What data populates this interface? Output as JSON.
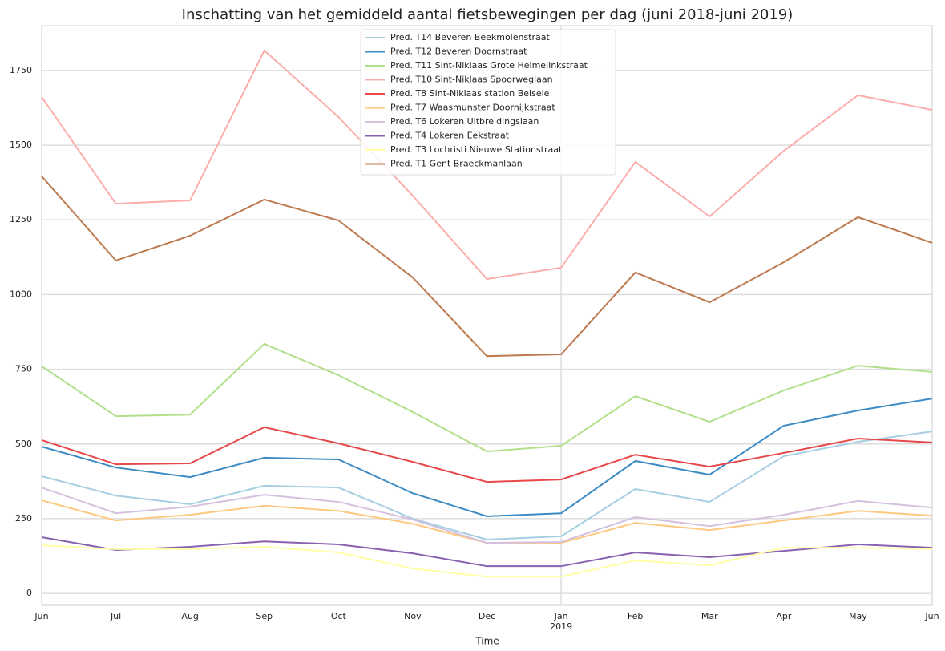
{
  "chart_data": {
    "type": "line",
    "title": "Inschatting van het gemiddeld aantal fietsbewegingen per dag (juni 2018-juni 2019)",
    "x_label": "Time",
    "categories": [
      "Jun",
      "Jul",
      "Aug",
      "Sep",
      "Oct",
      "Nov",
      "Dec",
      "Jan",
      "Feb",
      "Mar",
      "Apr",
      "May",
      "Jun"
    ],
    "year_label": "2019",
    "ylim": [
      -40,
      1900
    ],
    "yticks": [
      0,
      250,
      500,
      750,
      1000,
      1250,
      1500,
      1750
    ],
    "grid": true,
    "legend": "upper center",
    "series": [
      {
        "name": "Pred. T14 Beveren Beekmolenstraat",
        "color": "#a6cee3",
        "values": [
          392,
          327,
          298,
          360,
          354,
          250,
          180,
          191,
          349,
          306,
          459,
          507,
          542
        ]
      },
      {
        "name": "Pred. T12 Beveren Doornstraat",
        "color": "#3d8bc4",
        "values": [
          491,
          421,
          389,
          454,
          448,
          335,
          258,
          268,
          443,
          397,
          561,
          612,
          652
        ]
      },
      {
        "name": "Pred. T11 Sint-Niklaas Grote Heimelinkstraat",
        "color": "#b2df8a",
        "values": [
          760,
          593,
          598,
          835,
          730,
          607,
          475,
          494,
          660,
          574,
          679,
          762,
          741
        ]
      },
      {
        "name": "Pred. T10 Sint-Niklaas Spoorweglaan",
        "color": "#fbadac",
        "values": [
          1661,
          1304,
          1315,
          1817,
          1594,
          1331,
          1052,
          1090,
          1444,
          1261,
          1481,
          1667,
          1618
        ]
      },
      {
        "name": "Pred. T8 Sint-Niklaas station Belsele",
        "color": "#e8474a",
        "values": [
          513,
          432,
          435,
          556,
          502,
          440,
          373,
          381,
          464,
          424,
          470,
          518,
          505
        ]
      },
      {
        "name": "Pred. T7 Waasmunster Doornijkstraat",
        "color": "#fdc87f",
        "values": [
          311,
          244,
          263,
          293,
          276,
          233,
          169,
          169,
          236,
          212,
          244,
          276,
          260
        ]
      },
      {
        "name": "Pred. T6 Lokeren Uitbreidingslaan",
        "color": "#d4c1e0",
        "values": [
          354,
          268,
          290,
          330,
          306,
          247,
          169,
          172,
          255,
          225,
          263,
          309,
          287
        ]
      },
      {
        "name": "Pred. T4 Lokeren Eekstraat",
        "color": "#8862b0",
        "values": [
          188,
          145,
          156,
          174,
          164,
          134,
          91,
          91,
          137,
          121,
          142,
          164,
          153
        ]
      },
      {
        "name": "Pred. T3 Lochristi Nieuwe Stationstraat",
        "color": "#ffffa8",
        "values": [
          161,
          148,
          148,
          156,
          137,
          83,
          56,
          56,
          110,
          94,
          153,
          153,
          148
        ]
      },
      {
        "name": "Pred. T1 Gent Braeckmanlaan",
        "color": "#bd7a50",
        "values": [
          1396,
          1114,
          1197,
          1318,
          1248,
          1057,
          794,
          800,
          1074,
          974,
          1108,
          1259,
          1173
        ]
      }
    ]
  }
}
